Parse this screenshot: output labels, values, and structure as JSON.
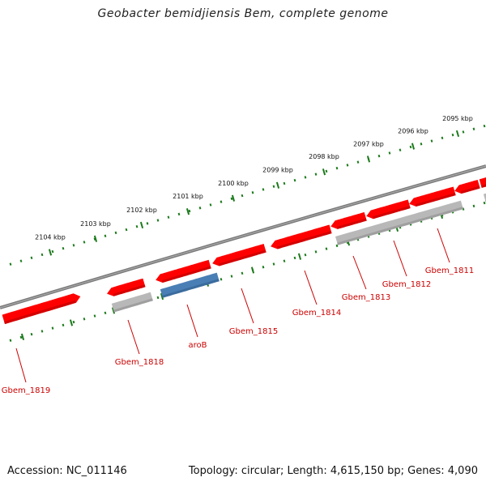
{
  "title": "Geobacter bemidjiensis Bem, complete genome",
  "footer": {
    "accession": "Accession: NC_011146",
    "summary": "Topology: circular; Length: 4,615,150 bp; Genes: 4,090"
  },
  "colors": {
    "backbone": "#7a7a7a",
    "cds": "#ff0000",
    "cds_other": "#b8b8b8",
    "cds_blue": "#4a7fb5",
    "ticks": "#1a7a1a",
    "label": "#cc0000"
  },
  "scale_ticks": [
    {
      "label": "2095 kbp"
    },
    {
      "label": "2096 kbp"
    },
    {
      "label": "2097 kbp"
    },
    {
      "label": "2098 kbp"
    },
    {
      "label": "2099 kbp"
    },
    {
      "label": "2100 kbp"
    },
    {
      "label": "2101 kbp"
    },
    {
      "label": "2102 kbp"
    },
    {
      "label": "2103 kbp"
    },
    {
      "label": "2104 kbp"
    }
  ],
  "genes": [
    {
      "name": "Gbem_1811"
    },
    {
      "name": "Gbem_1812"
    },
    {
      "name": "Gbem_1813"
    },
    {
      "name": "Gbem_1814"
    },
    {
      "name": "Gbem_1815"
    },
    {
      "name": "aroB"
    },
    {
      "name": "Gbem_1818"
    },
    {
      "name": "Gbem_1819"
    }
  ]
}
